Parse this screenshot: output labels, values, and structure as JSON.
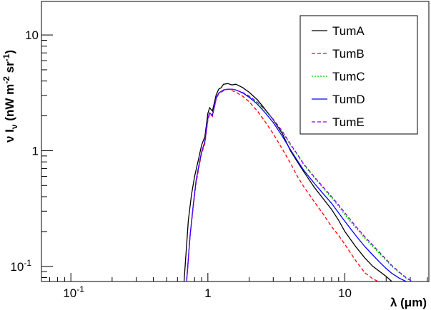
{
  "chart_data": {
    "type": "line",
    "title": "",
    "xlabel": "λ (μm)",
    "ylabel": "ν I_ν (nW m^-2 sr^-1)",
    "xscale": "log",
    "yscale": "log",
    "xlim": [
      0.061,
      41
    ],
    "ylim": [
      0.074,
      19.5
    ],
    "grid": false,
    "legend_position": "top-right",
    "x_tick_labels": [
      {
        "value": 0.1,
        "label": "10",
        "exp": "-1"
      },
      {
        "value": 1,
        "label": "1",
        "exp": ""
      },
      {
        "value": 10,
        "label": "10",
        "exp": ""
      }
    ],
    "y_tick_labels": [
      {
        "value": 0.1,
        "label": "10",
        "exp": "-1"
      },
      {
        "value": 1,
        "label": "1",
        "exp": ""
      },
      {
        "value": 10,
        "label": "10",
        "exp": ""
      }
    ],
    "series": [
      {
        "name": "TumA",
        "color": "#000000",
        "dash": "solid",
        "x": [
          0.67,
          0.72,
          0.76,
          0.8,
          0.85,
          0.9,
          0.95,
          1.0,
          1.03,
          1.08,
          1.15,
          1.2,
          1.25,
          1.3,
          1.4,
          1.5,
          1.6,
          1.8,
          2.0,
          2.3,
          2.6,
          3.0,
          3.5,
          4.0,
          4.5,
          5.0,
          6.0,
          7.0,
          8.0,
          9.0,
          10.0,
          12.0,
          14.0,
          16.0,
          18.0,
          20.0,
          22.0
        ],
        "y": [
          0.074,
          0.25,
          0.42,
          0.6,
          0.82,
          1.12,
          1.32,
          2.1,
          2.35,
          2.2,
          3.05,
          3.4,
          3.5,
          3.75,
          3.8,
          3.7,
          3.75,
          3.5,
          3.2,
          2.75,
          2.3,
          1.85,
          1.4,
          1.0,
          0.8,
          0.66,
          0.48,
          0.38,
          0.31,
          0.25,
          0.2,
          0.148,
          0.118,
          0.1,
          0.09,
          0.082,
          0.074
        ]
      },
      {
        "name": "TumB",
        "color": "#ff0000",
        "dash": "dashed",
        "x": [
          0.7,
          0.74,
          0.78,
          0.82,
          0.86,
          0.9,
          0.95,
          1.0,
          1.03,
          1.08,
          1.15,
          1.2,
          1.3,
          1.4,
          1.5,
          1.6,
          1.8,
          2.0,
          2.3,
          2.6,
          3.0,
          3.5,
          4.0,
          4.5,
          5.0,
          6.0,
          7.0,
          8.0,
          9.0,
          10.0,
          12.0,
          14.0,
          16.0,
          17.5
        ],
        "y": [
          0.074,
          0.18,
          0.32,
          0.52,
          0.72,
          0.95,
          1.15,
          1.82,
          2.08,
          1.98,
          2.8,
          3.1,
          3.3,
          3.4,
          3.3,
          3.2,
          2.95,
          2.65,
          2.2,
          1.8,
          1.4,
          1.03,
          0.78,
          0.6,
          0.49,
          0.36,
          0.28,
          0.22,
          0.185,
          0.155,
          0.112,
          0.088,
          0.078,
          0.074
        ]
      },
      {
        "name": "TumC",
        "color": "#00c000",
        "dash": "dotted",
        "x": [
          0.7,
          0.74,
          0.78,
          0.82,
          0.86,
          0.9,
          0.95,
          1.0,
          1.03,
          1.08,
          1.15,
          1.2,
          1.3,
          1.4,
          1.5,
          1.6,
          1.8,
          2.0,
          2.3,
          2.6,
          3.0,
          3.5,
          4.0,
          4.5,
          5.0,
          6.0,
          7.0,
          8.0,
          9.0,
          10.0,
          12.0,
          14.0,
          16.0,
          18.0,
          20.0,
          22.0,
          25.0,
          28.0,
          31.0
        ],
        "y": [
          0.074,
          0.18,
          0.33,
          0.55,
          0.75,
          0.98,
          1.2,
          1.9,
          2.12,
          2.02,
          2.85,
          3.15,
          3.35,
          3.4,
          3.4,
          3.35,
          3.15,
          2.95,
          2.6,
          2.25,
          1.85,
          1.45,
          1.12,
          0.92,
          0.76,
          0.58,
          0.47,
          0.39,
          0.33,
          0.28,
          0.215,
          0.175,
          0.148,
          0.128,
          0.113,
          0.1,
          0.088,
          0.079,
          0.074
        ]
      },
      {
        "name": "TumD",
        "color": "#0000ff",
        "dash": "solid",
        "x": [
          0.7,
          0.74,
          0.78,
          0.82,
          0.86,
          0.9,
          0.95,
          1.0,
          1.03,
          1.08,
          1.15,
          1.2,
          1.3,
          1.4,
          1.5,
          1.6,
          1.8,
          2.0,
          2.3,
          2.6,
          3.0,
          3.5,
          4.0,
          4.5,
          5.0,
          6.0,
          7.0,
          8.0,
          9.0,
          10.0,
          12.0,
          14.0,
          16.0,
          18.0,
          20.0,
          22.0,
          25.0,
          28.0
        ],
        "y": [
          0.074,
          0.18,
          0.33,
          0.55,
          0.75,
          0.98,
          1.2,
          1.9,
          2.12,
          2.02,
          2.85,
          3.15,
          3.35,
          3.4,
          3.4,
          3.35,
          3.15,
          2.9,
          2.52,
          2.15,
          1.75,
          1.33,
          1.02,
          0.82,
          0.68,
          0.52,
          0.42,
          0.35,
          0.29,
          0.245,
          0.185,
          0.148,
          0.125,
          0.108,
          0.096,
          0.087,
          0.079,
          0.074
        ]
      },
      {
        "name": "TumE",
        "color": "#8000ff",
        "dash": "dashed",
        "x": [
          0.7,
          0.74,
          0.78,
          0.82,
          0.86,
          0.9,
          0.95,
          1.0,
          1.03,
          1.08,
          1.15,
          1.2,
          1.3,
          1.4,
          1.5,
          1.6,
          1.8,
          2.0,
          2.3,
          2.6,
          3.0,
          3.5,
          4.0,
          4.5,
          5.0,
          6.0,
          7.0,
          8.0,
          9.0,
          10.0,
          12.0,
          14.0,
          16.0,
          18.0,
          20.0,
          22.0,
          25.0,
          28.0,
          31.0
        ],
        "y": [
          0.074,
          0.18,
          0.33,
          0.55,
          0.75,
          0.98,
          1.2,
          1.9,
          2.12,
          2.02,
          2.85,
          3.15,
          3.35,
          3.4,
          3.4,
          3.35,
          3.18,
          2.97,
          2.62,
          2.27,
          1.87,
          1.47,
          1.14,
          0.93,
          0.77,
          0.59,
          0.48,
          0.4,
          0.34,
          0.29,
          0.222,
          0.18,
          0.152,
          0.131,
          0.115,
          0.102,
          0.089,
          0.08,
          0.074
        ]
      }
    ]
  }
}
